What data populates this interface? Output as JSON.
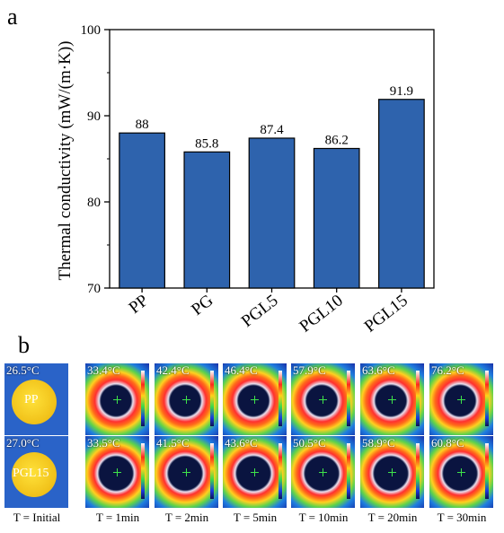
{
  "panel_a_label": "a",
  "panel_b_label": "b",
  "chart_data": {
    "type": "bar",
    "categories": [
      "PP",
      "PG",
      "PGL5",
      "PGL10",
      "PGL15"
    ],
    "values": [
      88,
      85.8,
      87.4,
      86.2,
      91.9
    ],
    "value_labels": [
      "88",
      "85.8",
      "87.4",
      "86.2",
      "91.9"
    ],
    "ylabel": "Thermal conductivity (mW/(m·K))",
    "xlabel": "",
    "ylim": [
      70,
      100
    ],
    "yticks": [
      70,
      80,
      90,
      100
    ],
    "bar_color": "#2e63ad",
    "grid": false
  },
  "thermal": {
    "time_labels": [
      "T = Initial",
      "T = 1min",
      "T = 2min",
      "T = 5min",
      "T = 10min",
      "T = 20min",
      "T = 30min"
    ],
    "rows": [
      {
        "sample": "PP",
        "temps": [
          "26.5°C",
          "33.4°C",
          "42.4°C",
          "46.4°C",
          "57.9°C",
          "63.6°C",
          "76.2°C"
        ]
      },
      {
        "sample": "PGL15",
        "temps": [
          "27.0°C",
          "33.5°C",
          "41.5°C",
          "43.6°C",
          "50.5°C",
          "58.9°C",
          "60.8°C"
        ]
      }
    ]
  }
}
